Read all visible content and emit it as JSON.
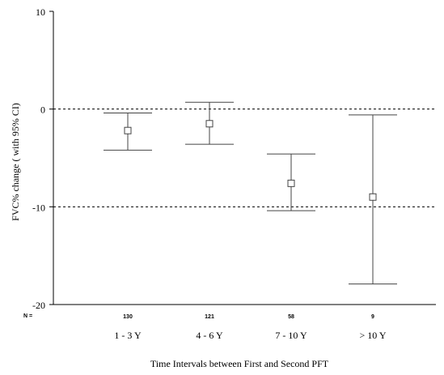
{
  "chart_data": {
    "type": "errorbar",
    "title": "",
    "xlabel": "Time Intervals between First and Second PFT",
    "ylabel": "FVC% change ( with 95% CI)",
    "ylim": [
      -20,
      10
    ],
    "yticks": [
      10,
      0,
      -10,
      -20
    ],
    "n_prefix": "N =",
    "reference_lines": [
      0,
      -10
    ],
    "reference_line_style": "dashed",
    "marker": "open-square",
    "categories": [
      "1 - 3 Y",
      "4 - 6 Y",
      "7 - 10 Y",
      "> 10 Y"
    ],
    "n_values": [
      "130",
      "121",
      "58",
      "9"
    ],
    "means": [
      -2.2,
      -1.5,
      -7.6,
      -9.0
    ],
    "ci_lower": [
      -4.2,
      -3.6,
      -10.4,
      -17.9
    ],
    "ci_upper": [
      -0.4,
      0.7,
      -4.6,
      -0.6
    ]
  }
}
